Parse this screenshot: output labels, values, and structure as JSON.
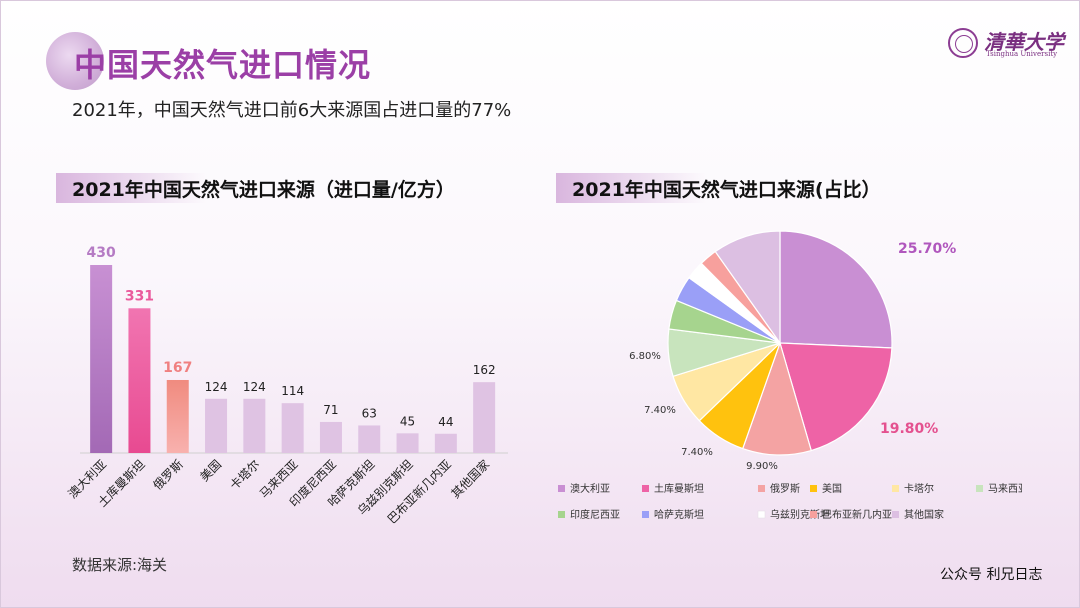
{
  "header": {
    "title": "中国天然气进口情况",
    "subtitle": "2021年，中国天然气进口前6大来源国占进口量的77%"
  },
  "logo": {
    "cn": "清華大学",
    "en": "Tsinghua University"
  },
  "footer": {
    "source": "数据来源:海关",
    "credit": "公众号 利兄日志"
  },
  "colors": {
    "purple": "#b57bc4",
    "pink": "#ea5a9c",
    "coral": "#f3908e",
    "lavender": "#dfc3e3",
    "gold": "#ffc20e",
    "cream": "#ffe7a3",
    "mint": "#c8e4bd",
    "green": "#a6d48e",
    "periwinkle": "#9a9ff7",
    "white": "#ffffff",
    "salmon": "#f7a09d",
    "mauve": "#dcbfe2"
  },
  "chart_data": [
    {
      "type": "bar",
      "title": "2021年中国天然气进口来源（进口量/亿方）",
      "categories": [
        "澳大利亚",
        "土库曼斯坦",
        "俄罗斯",
        "美国",
        "卡塔尔",
        "马来西亚",
        "印度尼西亚",
        "哈萨克斯坦",
        "乌兹别克斯坦",
        "巴布亚新几内亚",
        "其他国家"
      ],
      "values": [
        430,
        331,
        167,
        124,
        124,
        114,
        71,
        63,
        45,
        44,
        162
      ],
      "value_labels": [
        "430",
        "331",
        "167",
        "124",
        "124",
        "114",
        "71",
        "63",
        "45",
        "44",
        "162"
      ],
      "highlighted_labels": [
        true,
        true,
        true,
        false,
        false,
        false,
        false,
        false,
        false,
        false,
        false
      ],
      "bar_colors": [
        "#b57bc4",
        "#ea5a9c",
        "#f3908e",
        "#dfc3e3",
        "#dfc3e3",
        "#dfc3e3",
        "#dfc3e3",
        "#dfc3e3",
        "#dfc3e3",
        "#dfc3e3",
        "#dfc3e3"
      ],
      "label_colors": [
        "#b57bc4",
        "#ea5a9c",
        "#f08080",
        "#222222",
        "#222222",
        "#222222",
        "#222222",
        "#222222",
        "#222222",
        "#222222",
        "#222222"
      ],
      "ylim": [
        0,
        430
      ]
    },
    {
      "type": "pie",
      "title": "2021年中国天然气进口来源(占比）",
      "labels": [
        "澳大利亚",
        "土库曼斯坦",
        "俄罗斯",
        "美国",
        "卡塔尔",
        "马来西亚",
        "印度尼西亚",
        "哈萨克斯坦",
        "乌兹别克斯坦",
        "巴布亚新几内亚",
        "其他国家"
      ],
      "values": [
        25.7,
        19.8,
        9.9,
        7.4,
        7.4,
        6.8,
        4.2,
        3.7,
        2.7,
        2.6,
        9.8
      ],
      "colors": [
        "#c98fd3",
        "#ee63a6",
        "#f4a3a3",
        "#ffc20e",
        "#ffe7a3",
        "#c8e4bd",
        "#a6d48e",
        "#9a9ff7",
        "#ffffff",
        "#f7a09d",
        "#dcbfe2"
      ],
      "data_labels": [
        "25.70%",
        "19.80%",
        "9.90%",
        "7.40%",
        "7.40%",
        "6.80%",
        "",
        "",
        "",
        "",
        ""
      ],
      "data_label_colors": [
        "#b057bd",
        "#e4518f",
        "#333333",
        "#333333",
        "#333333",
        "#333333"
      ],
      "legend_position": "bottom"
    }
  ]
}
